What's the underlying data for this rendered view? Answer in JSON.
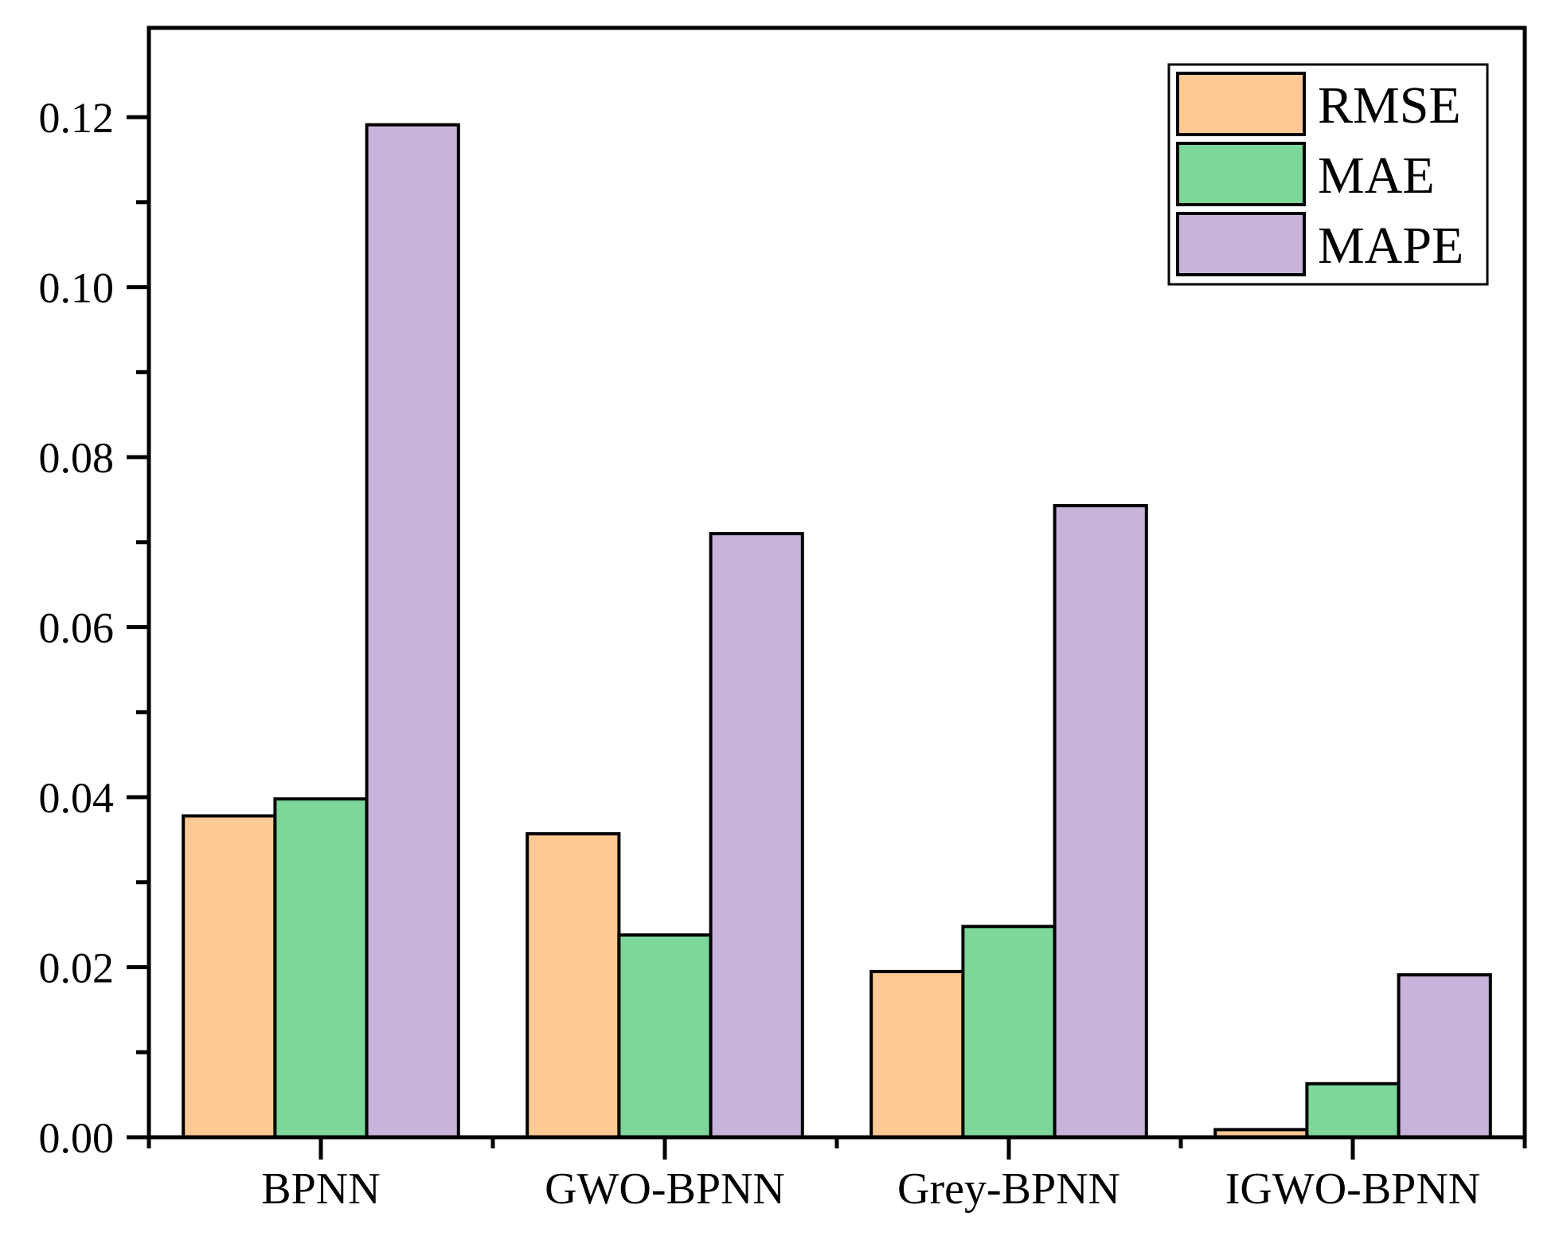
{
  "chart_data": {
    "type": "bar",
    "title": "",
    "categories": [
      "BPNN",
      "GWO-BPNN",
      "Grey-BPNN",
      "IGWO-BPNN"
    ],
    "series": [
      {
        "name": "RMSE",
        "color": "#FFC993",
        "values": [
          0.0378,
          0.0357,
          0.0195,
          0.0009
        ]
      },
      {
        "name": "MAE",
        "color": "#7DD79B",
        "values": [
          0.0398,
          0.0238,
          0.0248,
          0.0063
        ]
      },
      {
        "name": "MAPE",
        "color": "#C8B4DA",
        "values": [
          0.1191,
          0.071,
          0.0743,
          0.0191
        ]
      }
    ],
    "xlabel": "",
    "ylabel": "",
    "ylim": [
      0,
      0.1305
    ],
    "yticks": {
      "major": [
        {
          "value": 0.0,
          "label": "0.00"
        },
        {
          "value": 0.02,
          "label": "0.02"
        },
        {
          "value": 0.04,
          "label": "0.04"
        },
        {
          "value": 0.06,
          "label": "0.06"
        },
        {
          "value": 0.08,
          "label": "0.08"
        },
        {
          "value": 0.1,
          "label": "0.10"
        },
        {
          "value": 0.12,
          "label": "0.12"
        }
      ],
      "minor": [
        0.01,
        0.03,
        0.05,
        0.07,
        0.09,
        0.11
      ]
    },
    "grid": false,
    "legend": {
      "position": "top-right",
      "entries": [
        "RMSE",
        "MAE",
        "MAPE"
      ]
    },
    "colors": {
      "axis": "#000000",
      "bar_border": "#000000",
      "background": "#FFFFFF"
    }
  }
}
